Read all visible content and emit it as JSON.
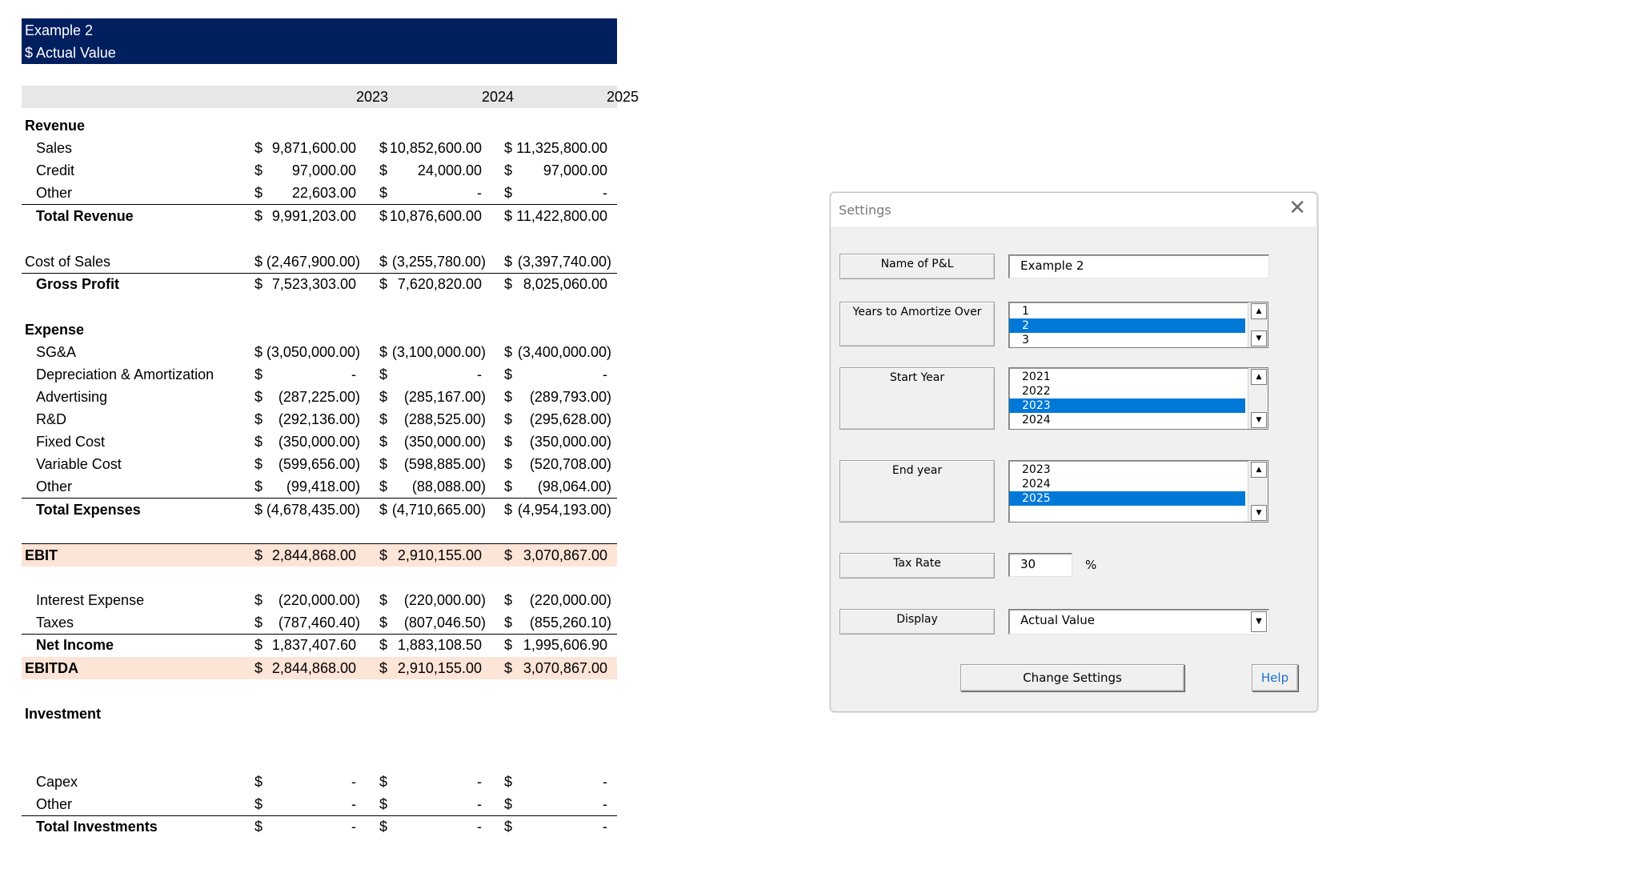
{
  "sheet": {
    "banner_line1": "Example 2",
    "banner_line2": "$ Actual Value",
    "years": [
      "2023",
      "2024",
      "2025"
    ],
    "rows": [
      {
        "label": "Revenue",
        "style": "section"
      },
      {
        "label": "Sales",
        "style": "item",
        "values": [
          "9,871,600.00 ",
          "10,852,600.00 ",
          "11,325,800.00 "
        ]
      },
      {
        "label": "Credit",
        "style": "item",
        "values": [
          "97,000.00 ",
          "24,000.00 ",
          "97,000.00 "
        ]
      },
      {
        "label": "Other",
        "style": "item",
        "values": [
          "22,603.00 ",
          "- ",
          "- "
        ]
      },
      {
        "label": "Total Revenue",
        "style": "total",
        "values": [
          "9,991,203.00 ",
          "10,876,600.00 ",
          "11,422,800.00 "
        ]
      },
      {
        "label": "Cost of Sales",
        "style": "plain",
        "values": [
          "(2,467,900.00)",
          "(3,255,780.00)",
          "(3,397,740.00)"
        ]
      },
      {
        "label": "Gross Profit",
        "style": "total",
        "values": [
          "7,523,303.00 ",
          "7,620,820.00 ",
          "8,025,060.00 "
        ]
      },
      {
        "label": "Expense",
        "style": "section"
      },
      {
        "label": "SG&A",
        "style": "item",
        "values": [
          "(3,050,000.00)",
          "(3,100,000.00)",
          "(3,400,000.00)"
        ]
      },
      {
        "label": "Depreciation & Amortization",
        "style": "item",
        "values": [
          "- ",
          "- ",
          "- "
        ]
      },
      {
        "label": "Advertising",
        "style": "item",
        "values": [
          "(287,225.00)",
          "(285,167.00)",
          "(289,793.00)"
        ]
      },
      {
        "label": "R&D",
        "style": "item",
        "values": [
          "(292,136.00)",
          "(288,525.00)",
          "(295,628.00)"
        ]
      },
      {
        "label": "Fixed Cost",
        "style": "item",
        "values": [
          "(350,000.00)",
          "(350,000.00)",
          "(350,000.00)"
        ]
      },
      {
        "label": "Variable Cost",
        "style": "item",
        "values": [
          "(599,656.00)",
          "(598,885.00)",
          "(520,708.00)"
        ]
      },
      {
        "label": "Other",
        "style": "item",
        "values": [
          "(99,418.00)",
          "(88,088.00)",
          "(98,064.00)"
        ]
      },
      {
        "label": "Total Expenses",
        "style": "total",
        "values": [
          "(4,678,435.00)",
          "(4,710,665.00)",
          "(4,954,193.00)"
        ]
      },
      {
        "label": "EBIT",
        "style": "highlight",
        "values": [
          "2,844,868.00 ",
          "2,910,155.00 ",
          "3,070,867.00 "
        ]
      },
      {
        "label": "Interest Expense",
        "style": "item",
        "values": [
          "(220,000.00)",
          "(220,000.00)",
          "(220,000.00)"
        ]
      },
      {
        "label": "Taxes",
        "style": "item",
        "values": [
          "(787,460.40)",
          "(807,046.50)",
          "(855,260.10)"
        ]
      },
      {
        "label": "Net Income",
        "style": "total",
        "values": [
          "1,837,407.60 ",
          "1,883,108.50 ",
          "1,995,606.90 "
        ]
      },
      {
        "label": "EBITDA",
        "style": "highlight",
        "values": [
          "2,844,868.00 ",
          "2,910,155.00 ",
          "3,070,867.00 "
        ]
      },
      {
        "label": "Investment",
        "style": "section"
      },
      {
        "label": "Capex",
        "style": "item",
        "values": [
          "- ",
          "- ",
          "- "
        ]
      },
      {
        "label": "Other",
        "style": "item",
        "values": [
          "- ",
          "- ",
          "- "
        ]
      },
      {
        "label": "Total Investments",
        "style": "total",
        "values": [
          "- ",
          "- ",
          "- "
        ]
      }
    ],
    "currency_symbol": "$"
  },
  "dialog": {
    "title": "Settings",
    "close_glyph": "✕",
    "name_label": "Name of P&L",
    "name_value": "Example 2",
    "amortize_label": "Years to Amortize Over",
    "amortize_options": [
      "1",
      "2",
      "3"
    ],
    "amortize_selected": 1,
    "start_label": "Start Year",
    "start_options": [
      "2021",
      "2022",
      "2023",
      "2024"
    ],
    "start_selected": 2,
    "end_label": "End year",
    "end_options": [
      "2023",
      "2024",
      "2025"
    ],
    "end_selected": 2,
    "tax_label": "Tax Rate",
    "tax_value": "30",
    "tax_unit": "%",
    "display_label": "Display",
    "display_value": "Actual Value",
    "change_button": "Change Settings",
    "help_button": "Help",
    "help_color": "#1a6fd1"
  }
}
